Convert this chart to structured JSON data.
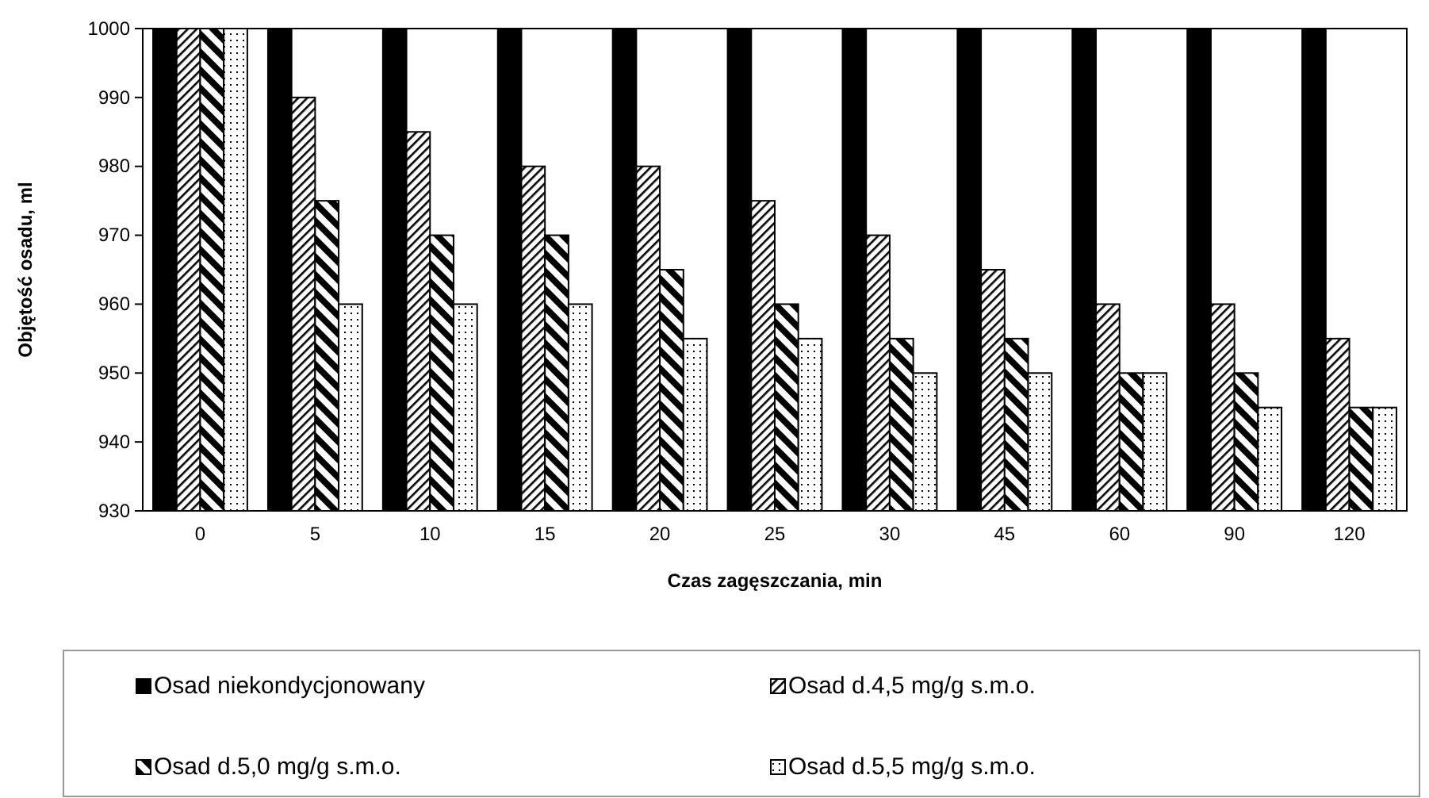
{
  "chart_data": {
    "type": "bar",
    "xlabel": "Czas zagęszczania, min",
    "ylabel": "Objętość osadu, ml",
    "categories": [
      "0",
      "5",
      "10",
      "15",
      "20",
      "25",
      "30",
      "45",
      "60",
      "90",
      "120"
    ],
    "ylim": [
      930,
      1000
    ],
    "yticks": [
      930,
      940,
      950,
      960,
      970,
      980,
      990,
      1000
    ],
    "legend": "bottom",
    "series": [
      {
        "name": "Osad niekondycjonowany",
        "color": "#000000",
        "values": [
          1000,
          1000,
          1000,
          1000,
          1000,
          1000,
          1000,
          1000,
          1000,
          1000,
          1000
        ]
      },
      {
        "name": "Osad d.4,5 mg/g s.m.o.",
        "color": "#000000",
        "values": [
          1000,
          990,
          985,
          980,
          980,
          975,
          970,
          965,
          960,
          960,
          955
        ]
      },
      {
        "name": "Osad d.5,0 mg/g s.m.o.",
        "color": "#000000",
        "values": [
          1000,
          975,
          970,
          970,
          965,
          960,
          955,
          955,
          950,
          950,
          945
        ]
      },
      {
        "name": "Osad d.5,5 mg/g s.m.o.",
        "color": "#000000",
        "values": [
          1000,
          960,
          960,
          960,
          955,
          955,
          950,
          950,
          950,
          945,
          945
        ]
      }
    ]
  }
}
